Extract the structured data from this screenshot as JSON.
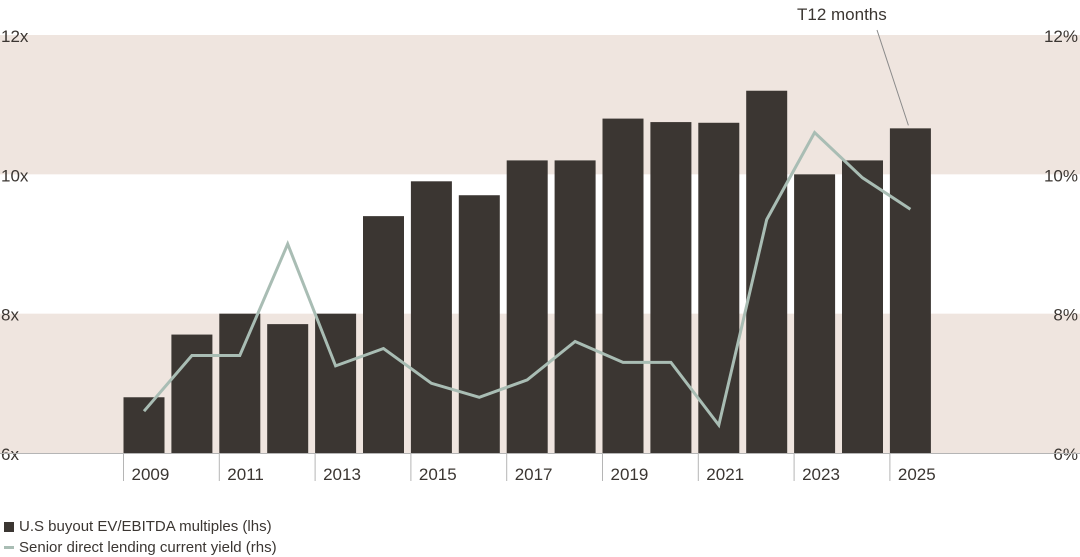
{
  "chart_data": {
    "type": "bar",
    "categories": [
      "2009",
      "2010",
      "2011",
      "2012",
      "2013",
      "2014",
      "2015",
      "2016",
      "2017",
      "2018",
      "2019",
      "2020",
      "2021",
      "2022",
      "2023",
      "2024",
      "2025"
    ],
    "x_tick_labels": [
      "2009",
      "2011",
      "2013",
      "2015",
      "2017",
      "2019",
      "2021",
      "2023",
      "2025"
    ],
    "series": [
      {
        "name": "U.S buyout EV/EBITDA multiples (lhs)",
        "axis": "left",
        "type": "bar",
        "values": [
          6.8,
          7.7,
          8.0,
          7.85,
          8.0,
          9.4,
          9.9,
          9.7,
          10.2,
          10.2,
          10.8,
          10.75,
          10.74,
          11.2,
          10.0,
          10.2,
          10.66
        ]
      },
      {
        "name": "Senior direct lending current yield (rhs)",
        "axis": "right",
        "type": "line",
        "values": [
          6.6,
          7.4,
          7.4,
          9.0,
          7.25,
          7.5,
          7.0,
          6.8,
          7.05,
          7.6,
          7.3,
          7.3,
          6.4,
          9.35,
          10.6,
          9.95,
          9.5
        ]
      }
    ],
    "y_left": {
      "min": 6,
      "max": 12,
      "ticks": [
        "6x",
        "8x",
        "10x",
        "12x"
      ],
      "tick_values": [
        6,
        8,
        10,
        12
      ]
    },
    "y_right": {
      "min": 6,
      "max": 12,
      "ticks": [
        "6%",
        "8%",
        "10%",
        "12%"
      ],
      "tick_values": [
        6,
        8,
        10,
        12
      ]
    },
    "bands": [
      [
        6,
        8
      ],
      [
        10,
        12
      ]
    ],
    "annotation": {
      "text": "T12 months",
      "category": "2025"
    },
    "colors": {
      "bar": "#3b3632",
      "line": "#a9bdb4",
      "band": "#efe5df",
      "axis": "#b5b5b5",
      "text": "#3b3632"
    },
    "legend": {
      "placement": "bottom-left",
      "items": [
        "U.S buyout EV/EBITDA multiples (lhs)",
        "Senior direct lending current yield (rhs)"
      ]
    }
  }
}
